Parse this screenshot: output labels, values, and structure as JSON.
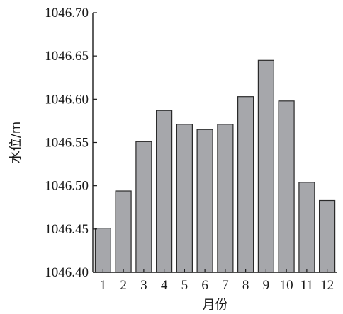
{
  "chart_data": {
    "type": "bar",
    "categories": [
      "1",
      "2",
      "3",
      "4",
      "5",
      "6",
      "7",
      "8",
      "9",
      "10",
      "11",
      "12"
    ],
    "values": [
      1046.451,
      1046.494,
      1046.551,
      1046.587,
      1046.571,
      1046.565,
      1046.571,
      1046.603,
      1046.645,
      1046.598,
      1046.504,
      1046.483
    ],
    "title": "",
    "xlabel": "月份",
    "ylabel": "水位/m",
    "ylim": [
      1046.4,
      1046.7
    ],
    "yticks": [
      "1046.40",
      "1046.45",
      "1046.50",
      "1046.55",
      "1046.60",
      "1046.65",
      "1046.70"
    ],
    "grid": false,
    "colors": {
      "bar_fill": "#a6a7ab",
      "bar_stroke": "#2a2a2a"
    }
  }
}
